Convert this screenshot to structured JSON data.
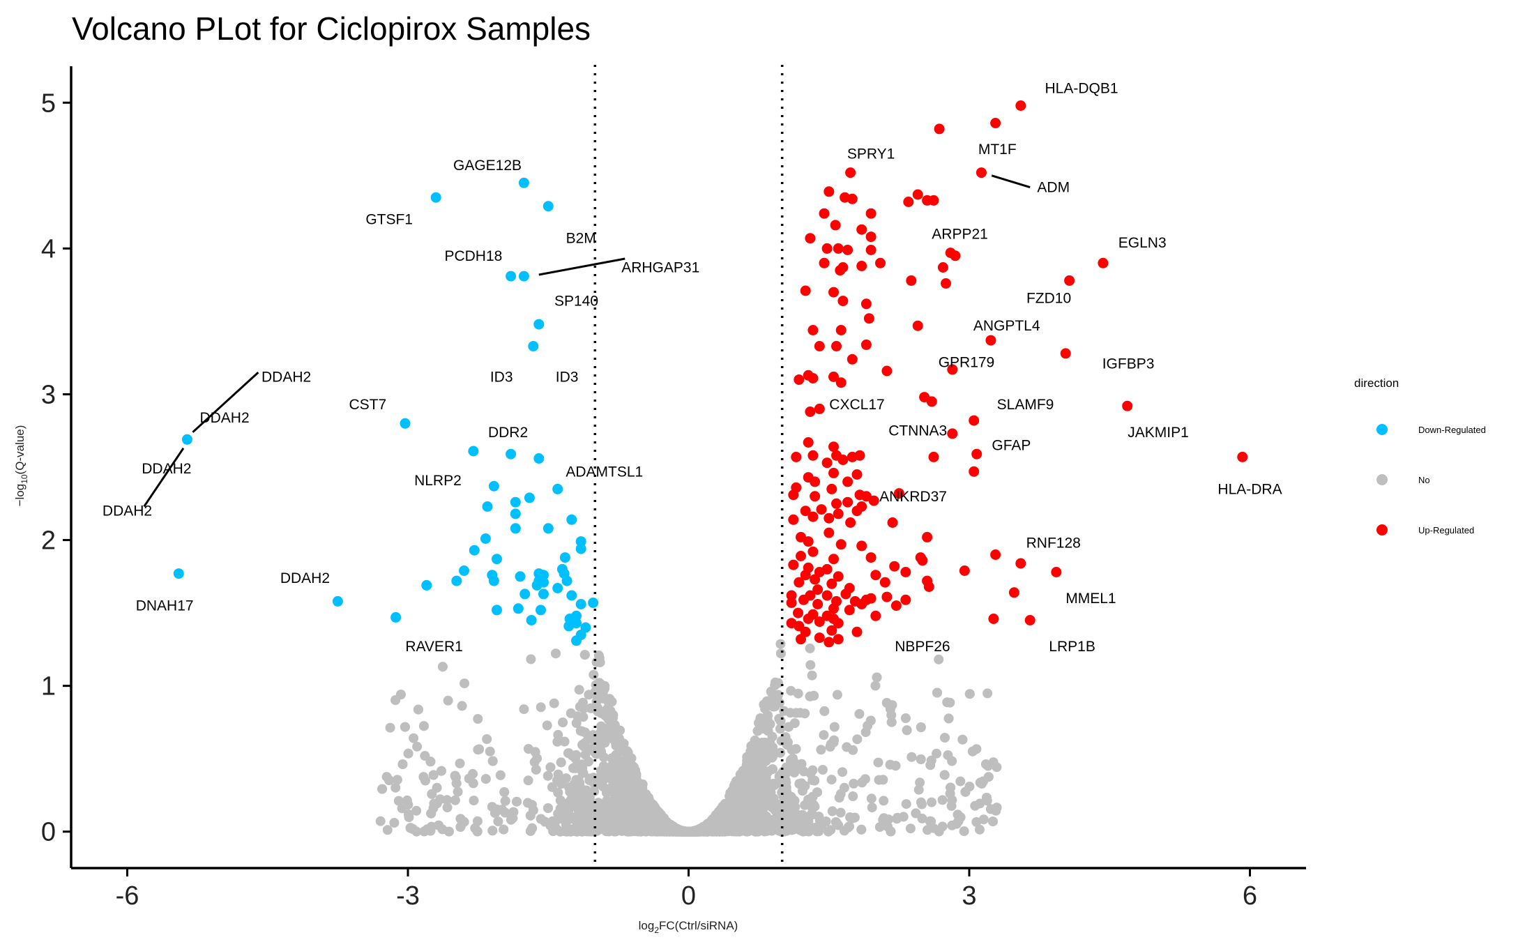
{
  "chart_data": {
    "type": "scatter",
    "title": "Volcano PLot for Ciclopirox Samples",
    "xlabel_base": "log",
    "xlabel_sub": "2",
    "xlabel_rest": "FC(Ctrl/siRNA)",
    "ylabel_pre": "−log",
    "ylabel_sub": "10",
    "ylabel_rest": "(Q-value)",
    "xlim": [
      -6.6,
      6.6
    ],
    "ylim": [
      -0.25,
      5.25
    ],
    "xticks": [
      -6,
      -3,
      0,
      3,
      6
    ],
    "xtick_labels": [
      "-6",
      "-3",
      "0",
      "3",
      "6"
    ],
    "yticks": [
      0,
      1,
      2,
      3,
      4,
      5
    ],
    "ytick_labels": [
      "0",
      "1",
      "2",
      "3",
      "4",
      "5"
    ],
    "thresholds_x": [
      -1,
      1
    ],
    "grid": false,
    "legend": {
      "title": "direction",
      "position": "right",
      "items": [
        {
          "label": "Down-Regulated",
          "color": "#00BFFF"
        },
        {
          "label": "No",
          "color": "#BEBEBE"
        },
        {
          "label": "Up-Regulated",
          "color": "#FF0000"
        }
      ]
    },
    "colors": {
      "down": "#00BFFF",
      "no": "#BEBEBE",
      "up": "#FF0000"
    },
    "series": [
      {
        "name": "Down-Regulated",
        "points": [
          [
            -5.36,
            2.69
          ],
          [
            -5.45,
            1.77
          ],
          [
            -2.7,
            4.35
          ],
          [
            -1.76,
            4.45
          ],
          [
            -1.5,
            4.29
          ],
          [
            -1.9,
            3.81
          ],
          [
            -1.76,
            3.81
          ],
          [
            -1.6,
            3.48
          ],
          [
            -1.66,
            3.33
          ],
          [
            -3.03,
            2.8
          ],
          [
            -2.3,
            2.61
          ],
          [
            -1.9,
            2.59
          ],
          [
            -1.6,
            2.56
          ],
          [
            -1.4,
            2.35
          ],
          [
            -2.08,
            2.37
          ],
          [
            -1.85,
            2.26
          ],
          [
            -1.7,
            2.29
          ],
          [
            -2.15,
            2.23
          ],
          [
            -1.85,
            2.18
          ],
          [
            -1.25,
            2.14
          ],
          [
            -1.85,
            2.08
          ],
          [
            -1.5,
            2.08
          ],
          [
            -2.17,
            2.01
          ],
          [
            -2.29,
            1.93
          ],
          [
            -1.15,
            1.99
          ],
          [
            -1.15,
            1.94
          ],
          [
            -1.32,
            1.88
          ],
          [
            -2.05,
            1.87
          ],
          [
            -1.35,
            1.8
          ],
          [
            -2.4,
            1.79
          ],
          [
            -2.1,
            1.76
          ],
          [
            -1.6,
            1.77
          ],
          [
            -1.8,
            1.75
          ],
          [
            -1.55,
            1.76
          ],
          [
            -1.6,
            1.72
          ],
          [
            -1.33,
            1.77
          ],
          [
            -2.08,
            1.72
          ],
          [
            -2.48,
            1.72
          ],
          [
            -1.55,
            1.71
          ],
          [
            -1.62,
            1.69
          ],
          [
            -1.3,
            1.72
          ],
          [
            -2.8,
            1.69
          ],
          [
            -1.4,
            1.67
          ],
          [
            -1.75,
            1.63
          ],
          [
            -1.55,
            1.63
          ],
          [
            -1.25,
            1.62
          ],
          [
            -1.02,
            1.57
          ],
          [
            -1.15,
            1.56
          ],
          [
            -1.82,
            1.53
          ],
          [
            -2.05,
            1.52
          ],
          [
            -1.58,
            1.52
          ],
          [
            -1.2,
            1.48
          ],
          [
            -1.27,
            1.46
          ],
          [
            -1.2,
            1.43
          ],
          [
            -1.68,
            1.45
          ],
          [
            -1.28,
            1.41
          ],
          [
            -1.1,
            1.4
          ],
          [
            -1.15,
            1.35
          ],
          [
            -1.2,
            1.31
          ],
          [
            -3.13,
            1.47
          ],
          [
            -3.75,
            1.58
          ]
        ]
      },
      {
        "name": "Up-Regulated",
        "points": [
          [
            3.55,
            4.98
          ],
          [
            2.68,
            4.82
          ],
          [
            3.28,
            4.86
          ],
          [
            3.13,
            4.52
          ],
          [
            1.73,
            4.52
          ],
          [
            1.5,
            4.39
          ],
          [
            1.67,
            4.35
          ],
          [
            1.75,
            4.34
          ],
          [
            2.45,
            4.37
          ],
          [
            1.95,
            4.24
          ],
          [
            1.45,
            4.24
          ],
          [
            2.35,
            4.32
          ],
          [
            2.55,
            4.33
          ],
          [
            2.62,
            4.33
          ],
          [
            1.57,
            4.16
          ],
          [
            1.85,
            4.13
          ],
          [
            1.95,
            4.08
          ],
          [
            1.3,
            4.07
          ],
          [
            1.48,
            4.0
          ],
          [
            1.6,
            4.0
          ],
          [
            1.7,
            3.99
          ],
          [
            1.95,
            3.99
          ],
          [
            2.85,
            3.95
          ],
          [
            2.8,
            3.97
          ],
          [
            2.05,
            3.9
          ],
          [
            1.45,
            3.9
          ],
          [
            1.65,
            3.87
          ],
          [
            1.62,
            3.85
          ],
          [
            1.85,
            3.88
          ],
          [
            2.72,
            3.87
          ],
          [
            4.43,
            3.9
          ],
          [
            4.07,
            3.78
          ],
          [
            2.38,
            3.78
          ],
          [
            2.75,
            3.76
          ],
          [
            1.25,
            3.71
          ],
          [
            1.55,
            3.7
          ],
          [
            1.65,
            3.64
          ],
          [
            1.9,
            3.62
          ],
          [
            1.93,
            3.52
          ],
          [
            2.45,
            3.47
          ],
          [
            1.33,
            3.44
          ],
          [
            1.63,
            3.44
          ],
          [
            3.23,
            3.37
          ],
          [
            1.4,
            3.33
          ],
          [
            1.58,
            3.33
          ],
          [
            1.9,
            3.34
          ],
          [
            1.75,
            3.24
          ],
          [
            4.03,
            3.28
          ],
          [
            2.82,
            3.17
          ],
          [
            2.12,
            3.16
          ],
          [
            1.18,
            3.1
          ],
          [
            1.28,
            3.13
          ],
          [
            1.33,
            3.11
          ],
          [
            1.55,
            3.12
          ],
          [
            1.63,
            3.08
          ],
          [
            2.52,
            2.98
          ],
          [
            2.6,
            2.95
          ],
          [
            4.69,
            2.92
          ],
          [
            1.3,
            2.88
          ],
          [
            1.4,
            2.9
          ],
          [
            3.05,
            2.82
          ],
          [
            2.82,
            2.73
          ],
          [
            1.28,
            2.67
          ],
          [
            1.55,
            2.64
          ],
          [
            5.92,
            2.57
          ],
          [
            3.08,
            2.59
          ],
          [
            1.15,
            2.57
          ],
          [
            1.33,
            2.58
          ],
          [
            1.58,
            2.58
          ],
          [
            1.75,
            2.57
          ],
          [
            1.83,
            2.58
          ],
          [
            2.62,
            2.57
          ],
          [
            1.48,
            2.53
          ],
          [
            1.65,
            2.55
          ],
          [
            3.05,
            2.47
          ],
          [
            1.28,
            2.43
          ],
          [
            1.55,
            2.46
          ],
          [
            1.8,
            2.45
          ],
          [
            1.35,
            2.4
          ],
          [
            1.7,
            2.4
          ],
          [
            1.15,
            2.36
          ],
          [
            1.12,
            2.31
          ],
          [
            1.53,
            2.35
          ],
          [
            1.35,
            2.3
          ],
          [
            1.83,
            2.31
          ],
          [
            1.9,
            2.3
          ],
          [
            1.98,
            2.27
          ],
          [
            2.25,
            2.32
          ],
          [
            1.58,
            2.25
          ],
          [
            1.7,
            2.26
          ],
          [
            1.85,
            2.23
          ],
          [
            1.25,
            2.2
          ],
          [
            1.42,
            2.21
          ],
          [
            1.6,
            2.18
          ],
          [
            1.8,
            2.2
          ],
          [
            1.12,
            2.14
          ],
          [
            1.33,
            2.16
          ],
          [
            1.5,
            2.15
          ],
          [
            1.73,
            2.12
          ],
          [
            2.18,
            2.12
          ],
          [
            1.5,
            2.05
          ],
          [
            2.55,
            2.02
          ],
          [
            1.2,
            2.02
          ],
          [
            1.28,
            1.99
          ],
          [
            1.63,
            1.97
          ],
          [
            1.85,
            1.96
          ],
          [
            1.33,
            1.92
          ],
          [
            1.95,
            1.88
          ],
          [
            1.2,
            1.89
          ],
          [
            1.55,
            1.87
          ],
          [
            2.48,
            1.88
          ],
          [
            3.28,
            1.9
          ],
          [
            3.55,
            1.84
          ],
          [
            1.12,
            1.83
          ],
          [
            1.28,
            1.81
          ],
          [
            1.48,
            1.8
          ],
          [
            2.2,
            1.82
          ],
          [
            2.5,
            1.86
          ],
          [
            1.4,
            1.78
          ],
          [
            2.95,
            1.79
          ],
          [
            3.93,
            1.78
          ],
          [
            1.25,
            1.76
          ],
          [
            1.6,
            1.75
          ],
          [
            2.0,
            1.76
          ],
          [
            2.32,
            1.78
          ],
          [
            1.35,
            1.73
          ],
          [
            2.55,
            1.72
          ],
          [
            1.18,
            1.71
          ],
          [
            1.53,
            1.7
          ],
          [
            2.1,
            1.71
          ],
          [
            2.57,
            1.68
          ],
          [
            1.38,
            1.66
          ],
          [
            1.72,
            1.67
          ],
          [
            3.48,
            1.64
          ],
          [
            1.1,
            1.62
          ],
          [
            1.3,
            1.62
          ],
          [
            1.48,
            1.62
          ],
          [
            1.68,
            1.63
          ],
          [
            1.95,
            1.6
          ],
          [
            2.12,
            1.61
          ],
          [
            1.23,
            1.59
          ],
          [
            1.58,
            1.58
          ],
          [
            1.78,
            1.58
          ],
          [
            1.9,
            1.59
          ],
          [
            2.32,
            1.59
          ],
          [
            1.1,
            1.57
          ],
          [
            1.38,
            1.56
          ],
          [
            1.85,
            1.56
          ],
          [
            2.22,
            1.55
          ],
          [
            1.55,
            1.53
          ],
          [
            1.72,
            1.52
          ],
          [
            1.17,
            1.5
          ],
          [
            1.33,
            1.49
          ],
          [
            1.48,
            1.48
          ],
          [
            2.0,
            1.48
          ],
          [
            1.28,
            1.46
          ],
          [
            1.55,
            1.46
          ],
          [
            1.1,
            1.43
          ],
          [
            1.4,
            1.44
          ],
          [
            1.6,
            1.43
          ],
          [
            3.65,
            1.45
          ],
          [
            3.26,
            1.46
          ],
          [
            1.18,
            1.41
          ],
          [
            1.53,
            1.38
          ],
          [
            1.25,
            1.37
          ],
          [
            1.8,
            1.37
          ],
          [
            1.4,
            1.33
          ],
          [
            1.6,
            1.32
          ],
          [
            1.5,
            1.3
          ],
          [
            1.2,
            1.32
          ]
        ]
      }
    ],
    "annotations": [
      {
        "text": "HLA-DQB1",
        "x": 4.2,
        "y": 5.1
      },
      {
        "text": "MT1F",
        "x": 3.3,
        "y": 4.68
      },
      {
        "text": "SPRY1",
        "x": 1.95,
        "y": 4.65
      },
      {
        "text": "ADM",
        "x": 3.9,
        "y": 4.42
      },
      {
        "text": "ARPP21",
        "x": 2.9,
        "y": 4.1
      },
      {
        "text": "EGLN3",
        "x": 4.85,
        "y": 4.04
      },
      {
        "text": "FZD10",
        "x": 3.85,
        "y": 3.66
      },
      {
        "text": "ANGPTL4",
        "x": 3.4,
        "y": 3.47
      },
      {
        "text": "GPR179",
        "x": 2.97,
        "y": 3.22
      },
      {
        "text": "IGFBP3",
        "x": 4.7,
        "y": 3.21
      },
      {
        "text": "CXCL17",
        "x": 1.8,
        "y": 2.93
      },
      {
        "text": "SLAMF9",
        "x": 3.6,
        "y": 2.93
      },
      {
        "text": "JAKMIP1",
        "x": 5.02,
        "y": 2.74
      },
      {
        "text": "CTNNA3",
        "x": 2.45,
        "y": 2.75
      },
      {
        "text": "GFAP",
        "x": 3.45,
        "y": 2.65
      },
      {
        "text": "HLA-DRA",
        "x": 6.0,
        "y": 2.35
      },
      {
        "text": "ANKRD37",
        "x": 2.4,
        "y": 2.3
      },
      {
        "text": "RNF128",
        "x": 3.9,
        "y": 1.98
      },
      {
        "text": "MMEL1",
        "x": 4.3,
        "y": 1.6
      },
      {
        "text": "NBPF26",
        "x": 2.5,
        "y": 1.27
      },
      {
        "text": "LRP1B",
        "x": 4.1,
        "y": 1.27
      },
      {
        "text": "GAGE12B",
        "x": -2.15,
        "y": 4.57
      },
      {
        "text": "GTSF1",
        "x": -3.2,
        "y": 4.2
      },
      {
        "text": "B2M",
        "x": -1.15,
        "y": 4.07
      },
      {
        "text": "PCDH18",
        "x": -2.3,
        "y": 3.95
      },
      {
        "text": "ARHGAP31",
        "x": -0.3,
        "y": 3.87
      },
      {
        "text": "SP140",
        "x": -1.2,
        "y": 3.64
      },
      {
        "text": "ID3",
        "x": -2.0,
        "y": 3.12
      },
      {
        "text": "ID3",
        "x": -1.3,
        "y": 3.12
      },
      {
        "text": "CST7",
        "x": -3.43,
        "y": 2.93
      },
      {
        "text": "DDR2",
        "x": -1.93,
        "y": 2.74
      },
      {
        "text": "ADAMTSL1",
        "x": -0.9,
        "y": 2.47
      },
      {
        "text": "NLRP2",
        "x": -2.68,
        "y": 2.41
      },
      {
        "text": "DDAH2",
        "x": -4.3,
        "y": 3.12
      },
      {
        "text": "DDAH2",
        "x": -4.96,
        "y": 2.84
      },
      {
        "text": "DDAH2",
        "x": -5.58,
        "y": 2.49
      },
      {
        "text": "DDAH2",
        "x": -6.0,
        "y": 2.2
      },
      {
        "text": "DNAH17",
        "x": -5.6,
        "y": 1.55
      },
      {
        "text": "DDAH2",
        "x": -4.1,
        "y": 1.74
      },
      {
        "text": "RAVER1",
        "x": -2.72,
        "y": 1.27
      }
    ],
    "segments": [
      {
        "x1": 3.24,
        "y1": 4.5,
        "x2": 3.65,
        "y2": 4.42
      },
      {
        "x1": -1.6,
        "y1": 3.82,
        "x2": -0.68,
        "y2": 3.93
      },
      {
        "x1": -5.3,
        "y1": 2.74,
        "x2": -4.6,
        "y2": 3.15
      },
      {
        "x1": -5.4,
        "y1": 2.63,
        "x2": -5.82,
        "y2": 2.23
      }
    ]
  }
}
